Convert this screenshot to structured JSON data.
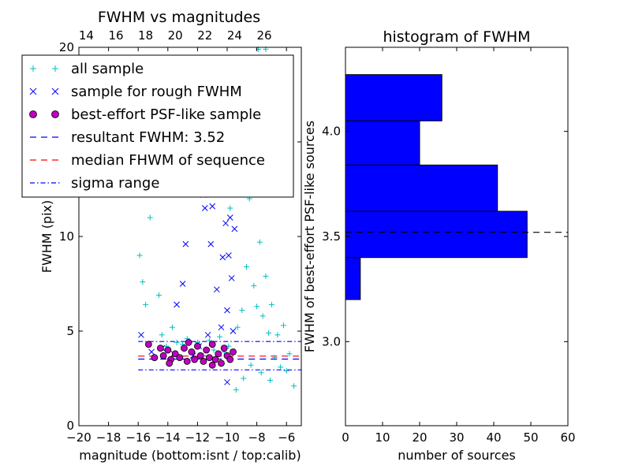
{
  "chart_data": [
    {
      "type": "scatter",
      "title": "FWHM vs magnitudes",
      "xlabel": "magnitude (bottom:isnt / top:calib)",
      "ylabel": "FWHM (pix)",
      "xlim": [
        -20,
        -5
      ],
      "ylim": [
        0,
        20
      ],
      "x_ticks": [
        -20,
        -18,
        -16,
        -14,
        -12,
        -10,
        -8,
        -6
      ],
      "x_tick_labels": [
        "−20",
        "−18",
        "−16",
        "−14",
        "−12",
        "−10",
        "−8",
        "−6"
      ],
      "y_ticks": [
        0,
        5,
        10,
        15,
        20
      ],
      "y_tick_labels": [
        "0",
        "5",
        "10",
        "15",
        "20"
      ],
      "top_axis_ticks": [
        14,
        16,
        18,
        20,
        22,
        24,
        26
      ],
      "top_axis_offset": 33.5,
      "legend_location": "upper-left",
      "grid": false,
      "series": [
        {
          "name": "all sample",
          "marker": "+",
          "color": "#00bfbf",
          "points": [
            [
              -15.9,
              9.0
            ],
            [
              -15.7,
              7.6
            ],
            [
              -15.5,
              6.4
            ],
            [
              -15.2,
              11.0
            ],
            [
              -14.6,
              6.9
            ],
            [
              -14.4,
              4.8
            ],
            [
              -14.1,
              4.2
            ],
            [
              -13.7,
              5.2
            ],
            [
              -13.4,
              4.4
            ],
            [
              -13.0,
              4.3
            ],
            [
              -12.7,
              4.6
            ],
            [
              -12.3,
              3.9
            ],
            [
              -12.0,
              4.4
            ],
            [
              -11.6,
              3.7
            ],
            [
              -11.2,
              4.5
            ],
            [
              -10.9,
              4.0
            ],
            [
              -10.5,
              4.7
            ],
            [
              -10.2,
              3.9
            ],
            [
              -9.9,
              4.2
            ],
            [
              -9.6,
              3.8
            ],
            [
              -9.3,
              5.2
            ],
            [
              -9.0,
              6.1
            ],
            [
              -8.7,
              8.4
            ],
            [
              -8.5,
              12.0
            ],
            [
              -8.2,
              7.4
            ],
            [
              -8.0,
              6.3
            ],
            [
              -7.8,
              9.7
            ],
            [
              -7.6,
              5.8
            ],
            [
              -7.4,
              7.9
            ],
            [
              -7.2,
              4.9
            ],
            [
              -7.0,
              6.4
            ],
            [
              -6.8,
              3.6
            ],
            [
              -6.6,
              4.8
            ],
            [
              -6.4,
              3.1
            ],
            [
              -6.2,
              5.3
            ],
            [
              -6.0,
              2.9
            ],
            [
              -5.8,
              3.8
            ],
            [
              -5.5,
              2.1
            ],
            [
              -9.2,
              19.0
            ],
            [
              -8.7,
              17.5
            ],
            [
              -8.3,
              14.5
            ],
            [
              -7.9,
              19.9
            ],
            [
              -7.4,
              19.9
            ],
            [
              -8.9,
              2.5
            ],
            [
              -8.4,
              3.2
            ],
            [
              -7.7,
              2.8
            ],
            [
              -7.1,
              2.4
            ],
            [
              -9.4,
              1.9
            ],
            [
              -9.8,
              11.5
            ],
            [
              -9.6,
              13.8
            ]
          ]
        },
        {
          "name": "sample for rough FWHM",
          "marker": "x",
          "color": "#0000ff",
          "points": [
            [
              -15.8,
              4.8
            ],
            [
              -15.1,
              3.9
            ],
            [
              -14.4,
              4.1
            ],
            [
              -13.6,
              3.8
            ],
            [
              -13.4,
              6.4
            ],
            [
              -13.0,
              7.5
            ],
            [
              -12.8,
              9.6
            ],
            [
              -12.3,
              3.7
            ],
            [
              -11.9,
              4.2
            ],
            [
              -11.6,
              12.2
            ],
            [
              -11.5,
              11.5
            ],
            [
              -11.3,
              4.8
            ],
            [
              -11.1,
              9.6
            ],
            [
              -11.0,
              11.6
            ],
            [
              -10.9,
              14.5
            ],
            [
              -10.7,
              7.2
            ],
            [
              -10.6,
              12.7
            ],
            [
              -10.4,
              5.2
            ],
            [
              -10.3,
              8.9
            ],
            [
              -10.2,
              13.1
            ],
            [
              -10.1,
              10.7
            ],
            [
              -10.0,
              6.1
            ],
            [
              -9.9,
              9.0
            ],
            [
              -9.8,
              11.0
            ],
            [
              -9.7,
              7.8
            ],
            [
              -9.7,
              13.5
            ],
            [
              -9.6,
              5.0
            ],
            [
              -9.5,
              10.4
            ],
            [
              -9.5,
              12.5
            ],
            [
              -10.0,
              2.3
            ]
          ]
        },
        {
          "name": "best-effort PSF-like sample",
          "marker": "o",
          "color": "#bf00bf",
          "points": [
            [
              -14.9,
              3.6
            ],
            [
              -14.5,
              4.1
            ],
            [
              -14.3,
              3.7
            ],
            [
              -14.0,
              4.0
            ],
            [
              -13.8,
              3.5
            ],
            [
              -13.5,
              3.8
            ],
            [
              -13.2,
              3.6
            ],
            [
              -12.9,
              4.1
            ],
            [
              -12.7,
              3.4
            ],
            [
              -12.4,
              3.9
            ],
            [
              -12.2,
              3.5
            ],
            [
              -12.0,
              4.2
            ],
            [
              -11.8,
              3.7
            ],
            [
              -11.6,
              3.4
            ],
            [
              -11.4,
              4.0
            ],
            [
              -11.2,
              3.6
            ],
            [
              -11.0,
              4.3
            ],
            [
              -10.8,
              3.5
            ],
            [
              -10.6,
              3.8
            ],
            [
              -10.4,
              3.3
            ],
            [
              -10.2,
              4.1
            ],
            [
              -10.0,
              3.7
            ],
            [
              -9.8,
              3.5
            ],
            [
              -9.6,
              3.9
            ],
            [
              -15.3,
              4.3
            ],
            [
              -13.9,
              3.3
            ],
            [
              -12.6,
              4.4
            ],
            [
              -11.0,
              3.2
            ]
          ]
        }
      ],
      "lines": [
        {
          "name": "resultant FWHM: 3.52",
          "style": "dashed",
          "color": "#0000ff",
          "y": 3.52,
          "x_range": [
            -16,
            -5
          ]
        },
        {
          "name": "median FHWM of sequence",
          "style": "dashed",
          "color": "#ff0000",
          "y": 3.68,
          "x_range": [
            -16,
            -5
          ]
        },
        {
          "name": "sigma range",
          "style": "dash-dot",
          "color": "#0000ff",
          "y": 4.45,
          "x_range": [
            -16,
            -5
          ]
        },
        {
          "name": "",
          "style": "dash-dot",
          "color": "#0000ff",
          "y": 2.95,
          "x_range": [
            -16,
            -5
          ]
        }
      ]
    },
    {
      "type": "bar",
      "orientation": "horizontal",
      "title": "histogram of FWHM",
      "xlabel": "number of sources",
      "ylabel": "FWHM of best-effort PSF-like sources",
      "xlim": [
        0,
        60
      ],
      "ylim": [
        2.6,
        4.4
      ],
      "x_ticks": [
        0,
        10,
        20,
        30,
        40,
        50,
        60
      ],
      "x_tick_labels": [
        "0",
        "10",
        "20",
        "30",
        "40",
        "50",
        "60"
      ],
      "y_ticks": [
        3.0,
        3.5,
        4.0
      ],
      "y_tick_labels": [
        "3.0",
        "3.5",
        "4.0"
      ],
      "bar_color": "#0000ff",
      "bins": [
        [
          3.2,
          3.4
        ],
        [
          3.4,
          3.62
        ],
        [
          3.62,
          3.84
        ],
        [
          3.84,
          4.05
        ],
        [
          4.05,
          4.27
        ]
      ],
      "values": [
        4,
        49,
        41,
        20,
        26
      ],
      "reference_line": {
        "y": 3.52,
        "style": "dashed",
        "color": "#000000"
      }
    }
  ]
}
